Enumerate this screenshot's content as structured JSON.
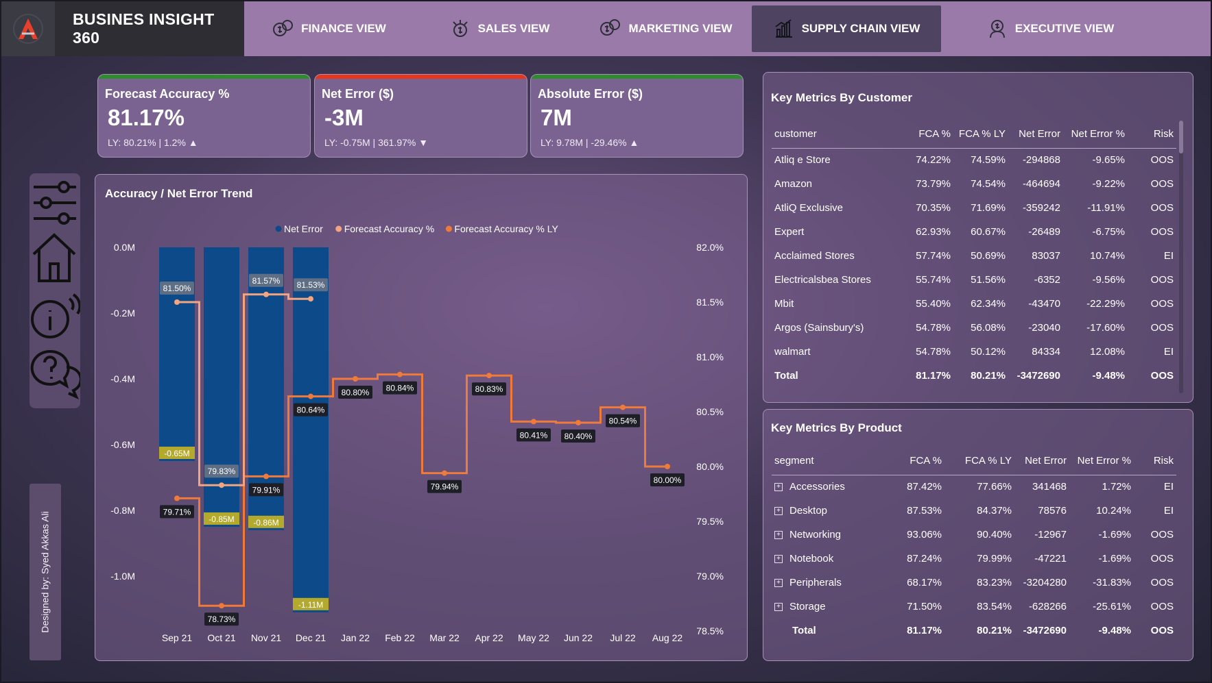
{
  "nav": {
    "brand": "BUSINES INSIGHT 360",
    "tabs": [
      {
        "label": "FINANCE VIEW",
        "icon": "finance-icon",
        "active": false
      },
      {
        "label": "SALES VIEW",
        "icon": "sales-icon",
        "active": false
      },
      {
        "label": "MARKETING VIEW",
        "icon": "marketing-icon",
        "active": false
      },
      {
        "label": "SUPPLY CHAIN VIEW",
        "icon": "supply-chain-icon",
        "active": true
      },
      {
        "label": "EXECUTIVE VIEW",
        "icon": "executive-icon",
        "active": false
      }
    ]
  },
  "kpis": [
    {
      "title": "Forecast Accuracy %",
      "value": "81.17%",
      "sub": "LY: 80.21% | 1.2%",
      "trend": "▲",
      "bar_color": "#2e8b2e"
    },
    {
      "title": "Net Error ($)",
      "value": "-3M",
      "sub": "LY: -0.75M | 361.97%",
      "trend": "▼",
      "bar_color": "#e8361c"
    },
    {
      "title": "Absolute Error ($)",
      "value": "7M",
      "sub": "LY: 9.78M | -29.46%",
      "trend": "▲",
      "bar_color": "#2e8b2e"
    }
  ],
  "trend_panel": {
    "title": "Accuracy / Net Error Trend"
  },
  "chart_data": {
    "type": "bar",
    "categories": [
      "Sep 21",
      "Oct 21",
      "Nov 21",
      "Dec 21",
      "Jan 22",
      "Feb 22",
      "Mar 22",
      "Apr 22",
      "May 22",
      "Jun 22",
      "Jul 22",
      "Aug 22"
    ],
    "series": [
      {
        "name": "Net Error",
        "type": "bar",
        "axis": "left",
        "color": "#0d4a8a",
        "values": [
          -0.65,
          -0.85,
          -0.86,
          -1.11,
          null,
          null,
          null,
          null,
          null,
          null,
          null,
          null
        ],
        "labels": [
          "-0.65M",
          "-0.85M",
          "-0.86M",
          "-1.11M"
        ]
      },
      {
        "name": "Forecast Accuracy %",
        "type": "line",
        "axis": "right",
        "color": "#f2a57e",
        "values": [
          81.5,
          79.83,
          81.57,
          81.53,
          null,
          null,
          null,
          null,
          null,
          null,
          null,
          null
        ],
        "labels": [
          "81.50%",
          "79.83%",
          "81.57%",
          "81.53%"
        ]
      },
      {
        "name": "Forecast Accuracy % LY",
        "type": "line",
        "axis": "right",
        "color": "#f07a3a",
        "values": [
          79.71,
          78.73,
          79.91,
          80.64,
          80.8,
          80.84,
          79.94,
          80.83,
          80.41,
          80.4,
          80.54,
          80.0
        ],
        "labels": [
          "79.71%",
          "78.73%",
          "79.91%",
          "80.64%",
          "80.80%",
          "80.84%",
          "79.94%",
          "80.83%",
          "80.41%",
          "80.40%",
          "80.54%",
          "80.00%"
        ]
      }
    ],
    "left_axis": {
      "ticks": [
        "0.0M",
        "-0.2M",
        "-0.4M",
        "-0.6M",
        "-0.8M",
        "-1.0M"
      ],
      "range": [
        -1.18,
        0
      ]
    },
    "right_axis": {
      "ticks": [
        "82.0%",
        "81.5%",
        "81.0%",
        "80.5%",
        "80.0%",
        "79.5%",
        "79.0%",
        "78.5%"
      ],
      "range": [
        78.5,
        82.0
      ]
    },
    "legend_position": "top-center"
  },
  "customer_table": {
    "title": "Key Metrics By Customer",
    "columns": [
      "customer",
      "FCA %",
      "FCA % LY",
      "Net Error",
      "Net Error %",
      "Risk"
    ],
    "rows": [
      [
        "Atliq e Store",
        "74.22%",
        "74.59%",
        "-294868",
        "-9.65%",
        "OOS"
      ],
      [
        "Amazon",
        "73.79%",
        "74.54%",
        "-464694",
        "-9.22%",
        "OOS"
      ],
      [
        "AtliQ Exclusive",
        "70.35%",
        "71.69%",
        "-359242",
        "-11.91%",
        "OOS"
      ],
      [
        "Expert",
        "62.93%",
        "60.67%",
        "-26489",
        "-6.75%",
        "OOS"
      ],
      [
        "Acclaimed Stores",
        "57.74%",
        "50.69%",
        "83037",
        "10.74%",
        "EI"
      ],
      [
        "Electricalsbea Stores",
        "55.74%",
        "51.56%",
        "-6352",
        "-9.56%",
        "OOS"
      ],
      [
        "Mbit",
        "55.40%",
        "62.34%",
        "-43470",
        "-22.29%",
        "OOS"
      ],
      [
        "Argos (Sainsbury's)",
        "54.78%",
        "56.08%",
        "-23040",
        "-17.60%",
        "OOS"
      ],
      [
        "walmart",
        "54.78%",
        "50.12%",
        "84334",
        "12.08%",
        "EI"
      ]
    ],
    "total": [
      "Total",
      "81.17%",
      "80.21%",
      "-3472690",
      "-9.48%",
      "OOS"
    ]
  },
  "product_table": {
    "title": "Key Metrics By Product",
    "columns": [
      "segment",
      "FCA %",
      "FCA % LY",
      "Net Error",
      "Net Error %",
      "Risk"
    ],
    "rows": [
      [
        "Accessories",
        "87.42%",
        "77.66%",
        "341468",
        "1.72%",
        "EI"
      ],
      [
        "Desktop",
        "87.53%",
        "84.37%",
        "78576",
        "10.24%",
        "EI"
      ],
      [
        "Networking",
        "93.06%",
        "90.40%",
        "-12967",
        "-1.69%",
        "OOS"
      ],
      [
        "Notebook",
        "87.24%",
        "79.99%",
        "-47221",
        "-1.69%",
        "OOS"
      ],
      [
        "Peripherals",
        "68.17%",
        "83.23%",
        "-3204280",
        "-31.83%",
        "OOS"
      ],
      [
        "Storage",
        "71.50%",
        "83.54%",
        "-628266",
        "-25.61%",
        "OOS"
      ]
    ],
    "total": [
      "Total",
      "81.17%",
      "80.21%",
      "-3472690",
      "-9.48%",
      "OOS"
    ]
  },
  "sidebar": {
    "icons": [
      "filter-sliders-icon",
      "home-icon",
      "info-icon",
      "help-chat-icon"
    ]
  },
  "signature": "Designed by: Syed Akkas Ali"
}
